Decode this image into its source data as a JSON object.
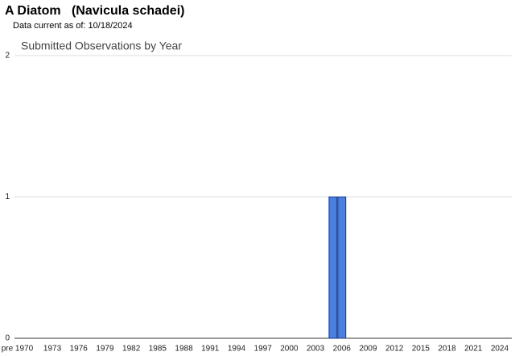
{
  "header": {
    "title": "A Diatom   (Navicula schadei)",
    "subtitle": "Data current as of: 10/18/2024"
  },
  "chart_data": {
    "type": "bar",
    "title": "Submitted Observations by Year",
    "categories": [
      "pre 1970",
      null,
      null,
      null,
      "1973",
      null,
      null,
      "1976",
      null,
      null,
      "1979",
      null,
      null,
      "1982",
      null,
      null,
      "1985",
      null,
      null,
      "1988",
      null,
      null,
      "1991",
      null,
      null,
      "1994",
      null,
      null,
      "1997",
      null,
      null,
      "2000",
      null,
      null,
      "2003",
      null,
      null,
      "2006",
      null,
      null,
      "2009",
      null,
      null,
      "2012",
      null,
      null,
      "2015",
      null,
      null,
      "2018",
      null,
      null,
      "2021",
      null,
      null,
      "2024"
    ],
    "values": [
      0,
      0,
      0,
      0,
      0,
      0,
      0,
      0,
      0,
      0,
      0,
      0,
      0,
      0,
      0,
      0,
      0,
      0,
      0,
      0,
      0,
      0,
      0,
      0,
      0,
      0,
      0,
      0,
      0,
      0,
      0,
      0,
      0,
      0,
      0,
      0,
      1,
      1,
      0,
      0,
      0,
      0,
      0,
      0,
      0,
      0,
      0,
      0,
      0,
      0,
      0,
      0,
      0,
      0,
      0,
      0
    ],
    "color": "#4a7fe0",
    "ylim": [
      0,
      2
    ],
    "yticks": [
      0,
      1,
      2
    ],
    "grid": true
  }
}
